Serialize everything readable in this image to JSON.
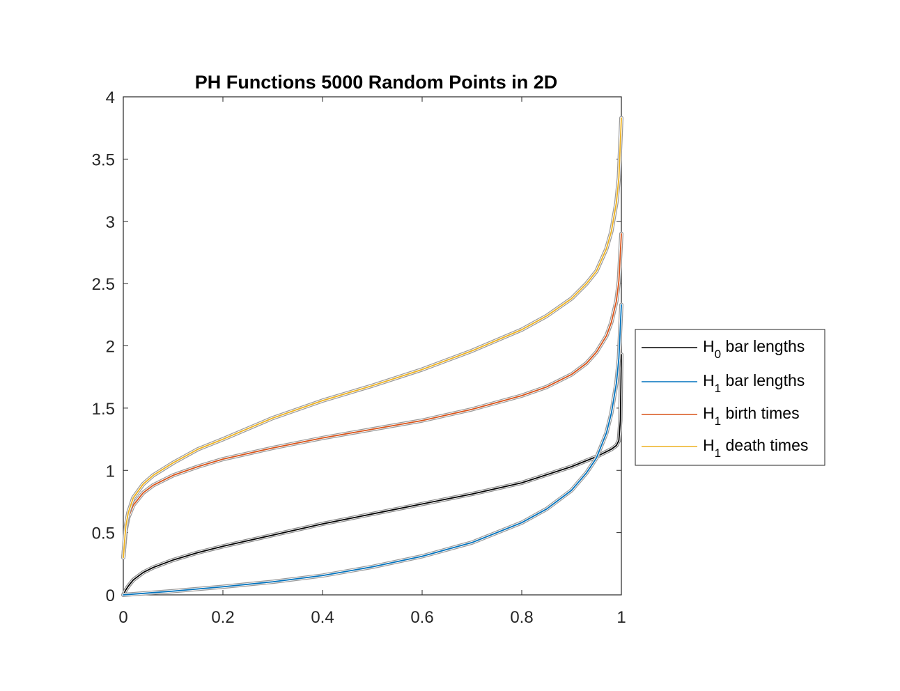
{
  "chart_data": {
    "type": "line",
    "title": "PH Functions 5000 Random Points in 2D",
    "xlabel": "",
    "ylabel": "",
    "xlim": [
      0,
      1
    ],
    "ylim": [
      0,
      4
    ],
    "xticks": [
      0,
      0.2,
      0.4,
      0.6,
      0.8,
      1
    ],
    "xtick_labels": [
      "0",
      "0.2",
      "0.4",
      "0.6",
      "0.8",
      "1"
    ],
    "yticks": [
      0,
      0.5,
      1,
      1.5,
      2,
      2.5,
      3,
      3.5,
      4
    ],
    "ytick_labels": [
      "0",
      "0.5",
      "1",
      "1.5",
      "2",
      "2.5",
      "3",
      "3.5",
      "4"
    ],
    "grid": false,
    "legend_position": "outside-right",
    "series": [
      {
        "legend_main": "H",
        "legend_sub": "0",
        "legend_rest": " bar lengths",
        "color": "#000000",
        "band_color": "#8c8c8c",
        "x": [
          0,
          0.005,
          0.01,
          0.02,
          0.04,
          0.06,
          0.1,
          0.15,
          0.2,
          0.3,
          0.4,
          0.5,
          0.6,
          0.7,
          0.8,
          0.9,
          0.95,
          0.97,
          0.98,
          0.99,
          0.995,
          0.998,
          1
        ],
        "y": [
          0,
          0.04,
          0.07,
          0.12,
          0.18,
          0.22,
          0.28,
          0.34,
          0.39,
          0.48,
          0.57,
          0.65,
          0.73,
          0.81,
          0.9,
          1.03,
          1.11,
          1.15,
          1.17,
          1.2,
          1.24,
          1.4,
          1.93
        ]
      },
      {
        "legend_main": "H",
        "legend_sub": "1",
        "legend_rest": " bar lengths",
        "color": "#0072bd",
        "band_color": "#9a9a9a",
        "x": [
          0,
          0.05,
          0.1,
          0.2,
          0.3,
          0.4,
          0.5,
          0.6,
          0.7,
          0.8,
          0.85,
          0.9,
          0.93,
          0.95,
          0.97,
          0.98,
          0.99,
          0.995,
          1
        ],
        "y": [
          0,
          0.015,
          0.03,
          0.065,
          0.105,
          0.155,
          0.225,
          0.31,
          0.42,
          0.58,
          0.69,
          0.84,
          0.98,
          1.1,
          1.3,
          1.46,
          1.7,
          1.9,
          2.33
        ]
      },
      {
        "legend_main": "H",
        "legend_sub": "1",
        "legend_rest": " birth times",
        "color": "#d95319",
        "band_color": "#9a9a9a",
        "x": [
          0,
          0.005,
          0.01,
          0.02,
          0.04,
          0.06,
          0.1,
          0.15,
          0.2,
          0.3,
          0.4,
          0.5,
          0.6,
          0.7,
          0.8,
          0.85,
          0.9,
          0.93,
          0.95,
          0.97,
          0.98,
          0.99,
          0.995,
          1
        ],
        "y": [
          0.3,
          0.52,
          0.62,
          0.72,
          0.82,
          0.88,
          0.96,
          1.03,
          1.09,
          1.18,
          1.26,
          1.33,
          1.4,
          1.49,
          1.6,
          1.67,
          1.77,
          1.86,
          1.95,
          2.08,
          2.19,
          2.36,
          2.52,
          2.9
        ]
      },
      {
        "legend_main": "H",
        "legend_sub": "1",
        "legend_rest": " death times",
        "color": "#edb120",
        "band_color": "#9a9a9a",
        "x": [
          0,
          0.005,
          0.01,
          0.02,
          0.04,
          0.06,
          0.1,
          0.15,
          0.2,
          0.3,
          0.4,
          0.5,
          0.6,
          0.7,
          0.8,
          0.85,
          0.9,
          0.93,
          0.95,
          0.97,
          0.98,
          0.99,
          0.995,
          1
        ],
        "y": [
          0.3,
          0.55,
          0.66,
          0.78,
          0.89,
          0.96,
          1.06,
          1.17,
          1.25,
          1.42,
          1.56,
          1.68,
          1.81,
          1.96,
          2.13,
          2.24,
          2.38,
          2.5,
          2.6,
          2.78,
          2.92,
          3.15,
          3.35,
          3.83
        ]
      }
    ]
  }
}
